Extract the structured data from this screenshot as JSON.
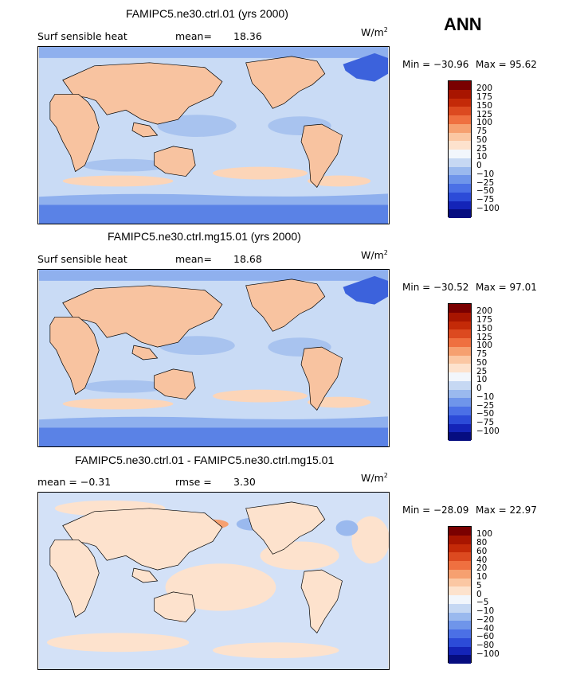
{
  "header": {
    "season": "ANN"
  },
  "panels": [
    {
      "title": "FAMIPC5.ne30.ctrl.01 (yrs 2000)",
      "left_label": "Surf sensible heat",
      "stat_label": "mean=",
      "stat_value": "18.36",
      "units_base": "W/m",
      "units_exp": "2",
      "min_text": "Min = −30.96",
      "max_text": "Max =  95.62",
      "levels": [
        "200",
        "175",
        "150",
        "125",
        "100",
        "75",
        "50",
        "25",
        "10",
        "0",
        "−10",
        "−25",
        "−50",
        "−75",
        "−100"
      ]
    },
    {
      "title": "FAMIPC5.ne30.ctrl.mg15.01 (yrs 2000)",
      "left_label": "Surf sensible heat",
      "stat_label": "mean=",
      "stat_value": "18.68",
      "units_base": "W/m",
      "units_exp": "2",
      "min_text": "Min = −30.52",
      "max_text": "Max =  97.01",
      "levels": [
        "200",
        "175",
        "150",
        "125",
        "100",
        "75",
        "50",
        "25",
        "10",
        "0",
        "−10",
        "−25",
        "−50",
        "−75",
        "−100"
      ]
    },
    {
      "title": "FAMIPC5.ne30.ctrl.01 - FAMIPC5.ne30.ctrl.mg15.01",
      "left_label": "mean =  −0.31",
      "stat_label": "rmse =",
      "stat_value": "3.30",
      "units_base": "W/m",
      "units_exp": "2",
      "min_text": "Min = −28.09",
      "max_text": "Max =  22.97",
      "levels": [
        "100",
        "80",
        "60",
        "40",
        "20",
        "10",
        "5",
        "0",
        "−5",
        "−10",
        "−20",
        "−40",
        "−60",
        "−80",
        "−100"
      ]
    }
  ],
  "colorbar_colors": [
    "#7a0000",
    "#a81500",
    "#c42a08",
    "#dc4a20",
    "#ef7040",
    "#f6a070",
    "#fbc7a3",
    "#fde2cd",
    "#f2f6fc",
    "#c6d8f3",
    "#9ab9ee",
    "#6f95ea",
    "#4b70e6",
    "#2c4bd8",
    "#1424b8",
    "#060d80"
  ]
}
